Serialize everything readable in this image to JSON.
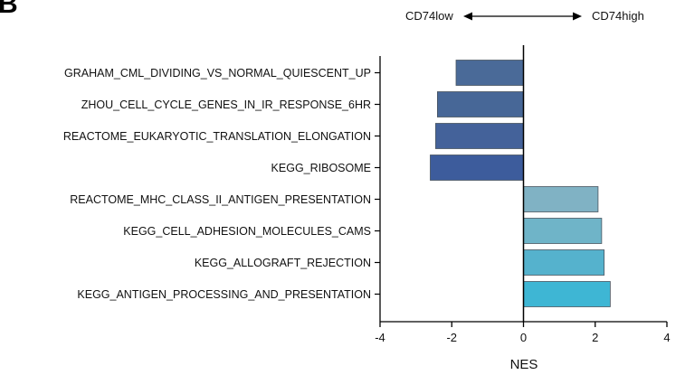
{
  "panel_label": "B",
  "direction": {
    "left_label": "CD74low",
    "right_label": "CD74high"
  },
  "colors": {
    "axis": "#000000",
    "bar_stroke": "#4a5560"
  },
  "chart_data": {
    "type": "bar",
    "orientation": "horizontal",
    "categories": [
      "GRAHAM_CML_DIVIDING_VS_NORMAL_QUIESCENT_UP",
      "ZHOU_CELL_CYCLE_GENES_IN_IR_RESPONSE_6HR",
      "REACTOME_EUKARYOTIC_TRANSLATION_ELONGATION",
      "KEGG_RIBOSOME",
      "REACTOME_MHC_CLASS_II_ANTIGEN_PRESENTATION",
      "KEGG_CELL_ADHESION_MOLECULES_CAMS",
      "KEGG_ALLOGRAFT_REJECTION",
      "KEGG_ANTIGEN_PROCESSING_AND_PRESENTATION"
    ],
    "values": [
      -1.88,
      -2.4,
      -2.45,
      -2.6,
      2.08,
      2.18,
      2.25,
      2.42
    ],
    "bar_colors": [
      "#4a6a98",
      "#476797",
      "#44629a",
      "#3d5c9c",
      "#80b2c4",
      "#6fb4c8",
      "#55b2cd",
      "#3eb6d4"
    ],
    "xlabel": "NES",
    "xlim": [
      -4,
      4
    ],
    "xticks": [
      -4,
      -2,
      0,
      2,
      4
    ],
    "xtick_labels": [
      "-4",
      "-2",
      "0",
      "2",
      "4"
    ],
    "grid": false,
    "legend": "none"
  }
}
